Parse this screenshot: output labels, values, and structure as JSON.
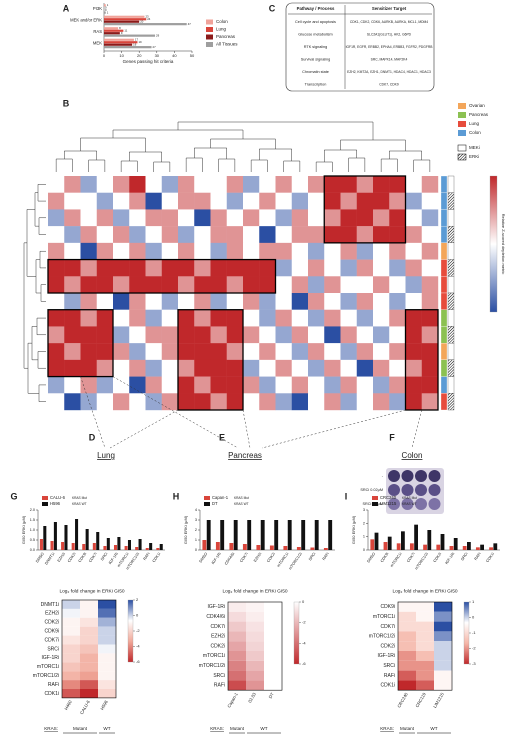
{
  "panel_letters": [
    "A",
    "B",
    "C",
    "D",
    "E",
    "F",
    "G",
    "H",
    "I"
  ],
  "table": {
    "header": [
      "Pathway / Process",
      "Sensitizer Target"
    ],
    "rows": [
      {
        "process": "Cell cycle and apoptosis",
        "targets": "CDK1, CDK2, CDK6, AURKB, AURKA, MCL1, MDM4",
        "color": "#1f3b8c"
      },
      {
        "process": "Glucose metabolism",
        "targets": "SLC2A1(GLUT1), HK2, G6PD",
        "color": "#d9453b"
      },
      {
        "process": "RTK signaling",
        "targets": "IGF1R, EGFR, ERBB2, EPHA4, ERBB3, FGFR2, PDGFRB",
        "color": "#4caf50"
      },
      {
        "process": "Survival signaling",
        "targets": "SRC, MAPK14, MAP2K4",
        "color": "#6aa84f"
      },
      {
        "process": "Chromatin state",
        "targets": "EZH2, KMT2A, EZH1, DNMT1, HDAC4, HDAC1, HDAC3",
        "color": "#3b78c2"
      },
      {
        "process": "Transcription",
        "targets": "CDK7, CDK9",
        "color": "#e69138"
      }
    ]
  },
  "subpanels": [
    {
      "text": "Lung",
      "color": "#d9453b"
    },
    {
      "text": "Pancreas",
      "color": "#3a9a3a"
    },
    {
      "text": "Colon",
      "color": "#2e6fb5"
    }
  ],
  "plate_labels": [
    "-",
    "SRCi 0.02μM",
    "SRCi 0.2μM"
  ],
  "chart_data": [
    {
      "type": "hbar",
      "categories": [
        "PI3K",
        "MEK and/or ERK",
        "RAS",
        "MEK"
      ],
      "series": [
        {
          "name": "Colon",
          "color": "#f0a39a",
          "values": [
            1,
            23,
            8,
            17
          ]
        },
        {
          "name": "Lung",
          "color": "#d9453b",
          "values": [
            0,
            24,
            11,
            19
          ]
        },
        {
          "name": "Pancreas",
          "color": "#8b1a1a",
          "values": [
            0,
            20,
            9,
            16
          ]
        },
        {
          "name": "All Tissues",
          "color": "#9e9e9e",
          "values": [
            1,
            47,
            29,
            27
          ]
        }
      ],
      "xlim": [
        0,
        50
      ],
      "xticks": [
        0,
        10,
        20,
        30,
        40,
        50
      ],
      "x_label": "Genes passing hit criteria"
    },
    {
      "type": "heatmap",
      "zlim": [
        -2,
        2
      ],
      "colors": [
        "#2b4fa3",
        "#ffffff",
        "#c0282b"
      ],
      "legend": [
        {
          "name": "Ovarian",
          "color": "#f3a65a"
        },
        {
          "name": "Pancreas",
          "color": "#8cc152"
        },
        {
          "name": "Lung",
          "color": "#e74c3c"
        },
        {
          "name": "Colon",
          "color": "#5b9bd5"
        }
      ],
      "treatment_legend": [
        "MEKi",
        "ERKi"
      ],
      "colorbar_label": "Relative Z-scored depletion metric",
      "row_tissue": [
        "Colon",
        "Colon",
        "Colon",
        "Colon",
        "Ovarian",
        "Lung",
        "Lung",
        "Lung",
        "Pancreas",
        "Pancreas",
        "Ovarian",
        "Pancreas",
        "Colon",
        "Lung"
      ],
      "values": [
        [
          0,
          1,
          -1,
          0,
          1,
          2,
          0,
          -1,
          1,
          0,
          0,
          1,
          -1,
          0,
          1,
          0,
          1,
          2,
          2,
          1,
          2,
          2,
          0,
          1
        ],
        [
          1,
          0,
          0,
          -1,
          0,
          1,
          -2,
          0,
          1,
          1,
          0,
          -1,
          0,
          1,
          0,
          -1,
          0,
          2,
          1,
          2,
          2,
          1,
          -1,
          0
        ],
        [
          -1,
          1,
          0,
          1,
          -1,
          0,
          1,
          1,
          0,
          -2,
          1,
          0,
          1,
          0,
          -1,
          1,
          0,
          1,
          2,
          2,
          1,
          2,
          0,
          -1
        ],
        [
          0,
          -1,
          1,
          0,
          1,
          -1,
          0,
          1,
          -1,
          0,
          1,
          1,
          0,
          -2,
          0,
          1,
          1,
          2,
          2,
          1,
          2,
          2,
          1,
          0
        ],
        [
          1,
          0,
          -2,
          1,
          0,
          1,
          -1,
          0,
          1,
          0,
          -1,
          1,
          0,
          1,
          1,
          0,
          -1,
          0,
          1,
          -1,
          0,
          1,
          0,
          1
        ],
        [
          2,
          2,
          1,
          2,
          2,
          2,
          1,
          2,
          2,
          1,
          2,
          2,
          2,
          2,
          -1,
          0,
          1,
          0,
          -1,
          1,
          0,
          -1,
          1,
          0
        ],
        [
          2,
          1,
          2,
          2,
          1,
          2,
          2,
          2,
          1,
          2,
          2,
          1,
          2,
          2,
          0,
          1,
          -1,
          1,
          0,
          0,
          1,
          0,
          -1,
          1
        ],
        [
          0,
          -1,
          1,
          0,
          -2,
          1,
          0,
          -1,
          0,
          1,
          -1,
          0,
          1,
          -1,
          0,
          -2,
          1,
          0,
          -1,
          1,
          0,
          -1,
          0,
          1
        ],
        [
          2,
          2,
          1,
          2,
          0,
          1,
          -1,
          0,
          2,
          1,
          2,
          2,
          0,
          -1,
          1,
          0,
          -1,
          1,
          0,
          -1,
          0,
          1,
          2,
          2
        ],
        [
          1,
          2,
          2,
          2,
          -1,
          0,
          1,
          1,
          2,
          2,
          1,
          2,
          1,
          0,
          -1,
          1,
          0,
          -2,
          1,
          0,
          -1,
          0,
          2,
          1
        ],
        [
          2,
          1,
          2,
          2,
          1,
          -1,
          0,
          1,
          2,
          2,
          2,
          1,
          0,
          1,
          0,
          -1,
          1,
          0,
          -1,
          1,
          0,
          1,
          2,
          2
        ],
        [
          2,
          2,
          2,
          1,
          0,
          1,
          -1,
          0,
          1,
          2,
          2,
          2,
          -1,
          0,
          1,
          0,
          -1,
          1,
          0,
          -2,
          1,
          0,
          1,
          2
        ],
        [
          -1,
          0,
          1,
          -1,
          0,
          -2,
          1,
          0,
          2,
          1,
          2,
          2,
          1,
          -1,
          0,
          1,
          0,
          -1,
          1,
          0,
          -1,
          1,
          2,
          2
        ],
        [
          0,
          -2,
          -1,
          0,
          1,
          0,
          -1,
          1,
          2,
          2,
          1,
          2,
          0,
          1,
          -1,
          -2,
          0,
          1,
          -1,
          0,
          1,
          -1,
          2,
          1
        ]
      ]
    },
    {
      "type": "bar",
      "y_label": "GI50 ERKi (μM)",
      "categories": [
        "DMSO",
        "DNMT1i",
        "EZH2i",
        "CDK2i",
        "CDK9i",
        "CDK7i",
        "SRCi",
        "IGF-1Ri",
        "mTORC1i",
        "mTORC1/2i",
        "RAFi",
        "CDK1i"
      ],
      "series": [
        {
          "name": "CALU-6",
          "status": "KRAS Mut",
          "color": "#d9453b",
          "values": [
            0.55,
            0.45,
            0.4,
            0.35,
            0.3,
            0.35,
            0.2,
            0.25,
            0.2,
            0.15,
            0.1,
            0.1
          ]
        },
        {
          "name": "H596",
          "status": "KRAS WT",
          "color": "#111111",
          "values": [
            1.2,
            1.4,
            1.25,
            1.55,
            1.05,
            0.9,
            0.6,
            0.65,
            0.5,
            0.55,
            0.35,
            0.3
          ]
        }
      ],
      "ylim": [
        0,
        2
      ],
      "yticks": [
        {
          "value": 0,
          "label": "0.0"
        },
        0.5,
        {
          "value": 1,
          "label": "1.0"
        },
        1.5,
        {
          "value": 2,
          "label": "2.0"
        }
      ]
    },
    {
      "type": "heatmap",
      "title": "Log₂ fold change in ERKi GI50",
      "rows": [
        "DNMT1i",
        "EZH2i",
        "CDK2i",
        "CDK9i",
        "CDK7i",
        "SRCi",
        "IGF-1Ri",
        "mTORC1i",
        "mTORC1/2i",
        "RAFi",
        "CDK1i"
      ],
      "columns": [
        "H460",
        "CALU-6",
        "H596"
      ],
      "group_title": "KRAS:",
      "kras": [
        "Mutant",
        "Mutant",
        "WT"
      ],
      "zlim": [
        -6,
        2
      ],
      "zticks": [
        2,
        0,
        -2,
        -4,
        -6
      ],
      "colors": [
        "#c0282b",
        "#f1a99a",
        "#ffffff",
        "#2b4fa3"
      ],
      "values": [
        [
          0,
          -1,
          2
        ],
        [
          -0.5,
          -1,
          1.5
        ],
        [
          -1,
          -1.5,
          0.5
        ],
        [
          -1,
          -2,
          0
        ],
        [
          -1.5,
          -2,
          0
        ],
        [
          -2,
          -2.5,
          -0.5
        ],
        [
          -2,
          -3,
          -1
        ],
        [
          -2.5,
          -3,
          -1
        ],
        [
          -3,
          -3.5,
          -1
        ],
        [
          -4,
          -5,
          -1.5
        ],
        [
          -5,
          -6,
          -2
        ]
      ]
    },
    {
      "type": "bar",
      "y_label": "GI50 ERKi (μM)",
      "categories": [
        "DMSO",
        "IGF-1Ri",
        "CDK4/6i",
        "CDK7i",
        "EZH2i",
        "CDK2i",
        "mTORC1i",
        "mTORC1/2i",
        "SRCi",
        "RAFi"
      ],
      "series": [
        {
          "name": "Capan-1",
          "status": "KRAS Mut",
          "color": "#d9453b",
          "values": [
            1.0,
            0.8,
            0.7,
            0.6,
            0.5,
            0.45,
            0.4,
            0.3,
            0.25,
            0.2
          ]
        },
        {
          "name": "DT",
          "status": "KRAS WT",
          "color": "#111111",
          "values": [
            3,
            3,
            3,
            3,
            3,
            3,
            3,
            3,
            3,
            3
          ]
        }
      ],
      "ylim": [
        0,
        4
      ],
      "yticks": [
        0,
        1,
        2,
        3,
        4
      ]
    },
    {
      "type": "heatmap",
      "title": "Log₂ fold change in ERKi GI50",
      "rows": [
        "IGF-1Ri",
        "CDK4/6i",
        "CDK7i",
        "EZH2i",
        "CDK2i",
        "mTORC1i",
        "mTORC1/2i",
        "SRCi",
        "RAFi"
      ],
      "columns": [
        "Capan-1",
        "02.03",
        "DT"
      ],
      "group_title": "KRAS:",
      "kras": [
        "Mutant",
        "WT",
        "WT"
      ],
      "zlim": [
        -6,
        0
      ],
      "zticks": [
        0,
        -2,
        -4,
        -6
      ],
      "colors": [
        "#c0282b",
        "#ffffff"
      ],
      "values": [
        [
          -0.5,
          -0.3,
          0
        ],
        [
          -1,
          -0.5,
          0
        ],
        [
          -1.5,
          -0.8,
          0
        ],
        [
          -2,
          -1,
          0
        ],
        [
          -2.5,
          -1.2,
          0
        ],
        [
          -3,
          -1.5,
          0
        ],
        [
          -3.5,
          -2,
          0
        ],
        [
          -4,
          -2.5,
          0
        ],
        [
          -5,
          -3,
          0
        ]
      ]
    },
    {
      "type": "bar",
      "y_label": "GI50 ERKi (μM)",
      "categories": [
        "DMSO",
        "CDK9i",
        "mTORC1i",
        "CDK7i",
        "mTORC1/2i",
        "CDK2i",
        "IGF-1Ri",
        "SRCi",
        "RAFi",
        "CDK1i"
      ],
      "series": [
        {
          "name": "CRC240",
          "status": "KRAS Mut",
          "color": "#d9453b",
          "values": [
            0.8,
            0.6,
            0.5,
            0.5,
            0.4,
            0.4,
            0.3,
            0.3,
            0.2,
            0.2
          ]
        },
        {
          "name": "LIM1215",
          "status": "KRAS WT",
          "color": "#111111",
          "values": [
            1.3,
            1.0,
            1.4,
            1.9,
            1.5,
            1.2,
            0.9,
            0.6,
            0.4,
            0.5
          ]
        }
      ],
      "ylim": [
        0,
        3
      ],
      "yticks": [
        0,
        1,
        2,
        3
      ]
    },
    {
      "type": "heatmap",
      "title": "Log₂ fold change in ERKi GI50",
      "rows": [
        "CDK9i",
        "mTORC1i",
        "CDK7i",
        "mTORC1/2i",
        "CDK2i",
        "IGF-1Ri",
        "SRCi",
        "RAFi",
        "CDK1i"
      ],
      "columns": [
        "CRC240",
        "CRC119",
        "LIM1215"
      ],
      "group_title": "KRAS:",
      "kras": [
        "Mutant",
        "WT",
        "WT"
      ],
      "zlim": [
        -3,
        1
      ],
      "zticks": [
        1,
        0,
        -1,
        -2,
        -3
      ],
      "colors": [
        "#c0282b",
        "#f5b6a8",
        "#ffffff",
        "#2b4fa3"
      ],
      "values": [
        [
          -0.5,
          -0.5,
          1
        ],
        [
          -1,
          -0.5,
          0.5
        ],
        [
          -1,
          -1,
          1
        ],
        [
          -1.5,
          -1,
          0.5
        ],
        [
          -1.5,
          -1,
          0
        ],
        [
          -2,
          -1.5,
          0
        ],
        [
          -2,
          -2,
          0
        ],
        [
          -2.5,
          -2,
          -0.5
        ],
        [
          -3,
          -2.5,
          -0.5
        ]
      ]
    }
  ]
}
